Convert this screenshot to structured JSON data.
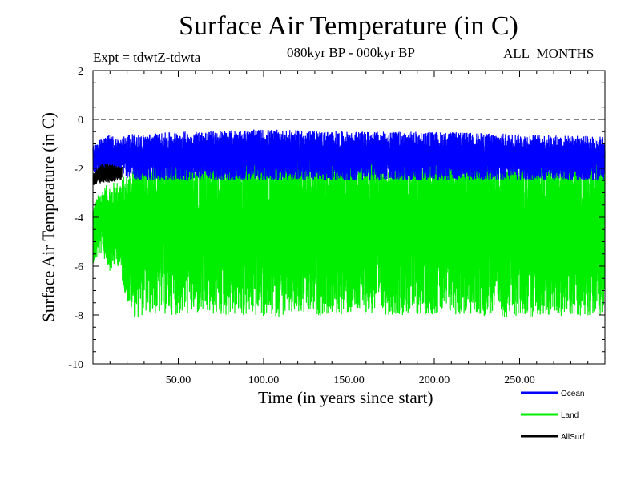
{
  "chart_data": {
    "type": "line",
    "title": "Surface Air Temperature (in C)",
    "subtitle": "080kyr BP - 000kyr BP",
    "experiment": "Expt = tdwtZ-tdwta",
    "months": "ALL_MONTHS",
    "xlabel": "Time (in years since start)",
    "ylabel": "Surface Air Temperature (in C)",
    "xlim": [
      0,
      300
    ],
    "ylim": [
      -10,
      2
    ],
    "x_ticks": [
      50,
      100,
      150,
      200,
      250
    ],
    "x_tick_labels": [
      "50.00",
      "100.00",
      "150.00",
      "200.00",
      "250.00"
    ],
    "y_ticks": [
      -10,
      -8,
      -6,
      -4,
      -2,
      0,
      2
    ],
    "y_tick_labels": [
      "-10",
      "-8",
      "-6",
      "-4",
      "-2",
      "0",
      "2"
    ],
    "reference_line": 0,
    "legend_position": "bottom-right",
    "series": [
      {
        "name": "Ocean",
        "color": "#0000ff",
        "x_range": [
          0,
          300
        ],
        "envelope_x": [
          0,
          5,
          10,
          15,
          20,
          30,
          50,
          100,
          150,
          200,
          250,
          300
        ],
        "envelope_low": [
          -2.1,
          -2.5,
          -2.3,
          -2.3,
          -2.4,
          -2.5,
          -2.5,
          -2.5,
          -2.5,
          -2.5,
          -2.5,
          -2.5
        ],
        "envelope_high": [
          -1.0,
          -0.8,
          -0.6,
          -0.8,
          -0.6,
          -0.6,
          -0.5,
          -0.4,
          -0.5,
          -0.5,
          -0.6,
          -0.7
        ]
      },
      {
        "name": "Land",
        "color": "#00ee00",
        "x_range": [
          0,
          300
        ],
        "envelope_x": [
          0,
          5,
          10,
          15,
          20,
          25,
          30,
          50,
          100,
          150,
          200,
          250,
          300
        ],
        "envelope_low": [
          -5.9,
          -5.5,
          -6.2,
          -6.0,
          -7.5,
          -8.2,
          -8.0,
          -8.0,
          -8.1,
          -8.0,
          -8.0,
          -8.1,
          -8.0
        ],
        "envelope_high": [
          -3.5,
          -2.8,
          -2.6,
          -2.5,
          -2.2,
          -1.5,
          -1.1,
          -1.0,
          -1.0,
          -1.0,
          -1.0,
          -1.0,
          -1.2
        ]
      },
      {
        "name": "AllSurf",
        "color": "#000000",
        "x_range": [
          0,
          17
        ],
        "envelope_x": [
          0,
          5,
          10,
          15,
          17
        ],
        "envelope_low": [
          -2.7,
          -2.6,
          -2.6,
          -2.5,
          -2.5
        ],
        "envelope_high": [
          -2.2,
          -1.8,
          -1.8,
          -1.9,
          -1.9
        ]
      }
    ]
  }
}
